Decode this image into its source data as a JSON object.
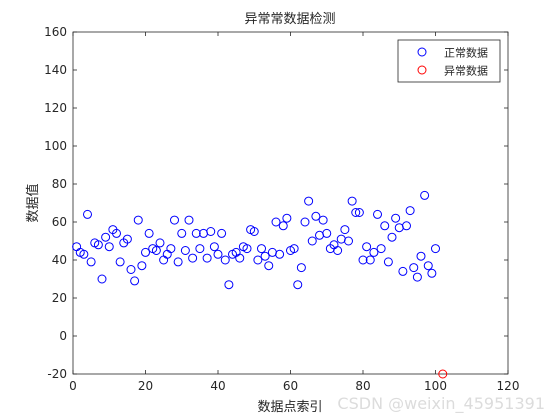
{
  "chart_data": {
    "type": "scatter",
    "title": "异常常数据检测",
    "xlabel": "数据点索引",
    "ylabel": "数据值",
    "xlim": [
      0,
      120
    ],
    "ylim": [
      -20,
      160
    ],
    "xticks": [
      0,
      20,
      40,
      60,
      80,
      100,
      120
    ],
    "yticks": [
      -20,
      0,
      20,
      40,
      60,
      80,
      100,
      120,
      140,
      160
    ],
    "grid": false,
    "legend_position": "top-right",
    "series": [
      {
        "name": "正常数据",
        "color": "#0000ff",
        "marker": "circle",
        "points": [
          [
            1,
            47
          ],
          [
            2,
            44
          ],
          [
            3,
            43
          ],
          [
            4,
            64
          ],
          [
            5,
            39
          ],
          [
            6,
            49
          ],
          [
            7,
            48
          ],
          [
            8,
            30
          ],
          [
            9,
            52
          ],
          [
            10,
            47
          ],
          [
            11,
            56
          ],
          [
            12,
            54
          ],
          [
            13,
            39
          ],
          [
            14,
            49
          ],
          [
            15,
            51
          ],
          [
            16,
            35
          ],
          [
            17,
            29
          ],
          [
            18,
            61
          ],
          [
            19,
            37
          ],
          [
            20,
            44
          ],
          [
            21,
            54
          ],
          [
            22,
            46
          ],
          [
            23,
            45
          ],
          [
            24,
            49
          ],
          [
            25,
            40
          ],
          [
            26,
            43
          ],
          [
            27,
            46
          ],
          [
            28,
            61
          ],
          [
            29,
            39
          ],
          [
            30,
            54
          ],
          [
            31,
            45
          ],
          [
            32,
            61
          ],
          [
            33,
            41
          ],
          [
            34,
            54
          ],
          [
            35,
            46
          ],
          [
            36,
            54
          ],
          [
            37,
            41
          ],
          [
            38,
            55
          ],
          [
            39,
            47
          ],
          [
            40,
            43
          ],
          [
            41,
            54
          ],
          [
            42,
            40
          ],
          [
            43,
            27
          ],
          [
            44,
            43
          ],
          [
            45,
            44
          ],
          [
            46,
            41
          ],
          [
            47,
            47
          ],
          [
            48,
            46
          ],
          [
            49,
            56
          ],
          [
            50,
            55
          ],
          [
            51,
            40
          ],
          [
            52,
            46
          ],
          [
            53,
            42
          ],
          [
            54,
            37
          ],
          [
            55,
            44
          ],
          [
            56,
            60
          ],
          [
            57,
            43
          ],
          [
            58,
            58
          ],
          [
            59,
            62
          ],
          [
            60,
            45
          ],
          [
            61,
            46
          ],
          [
            62,
            27
          ],
          [
            63,
            36
          ],
          [
            64,
            60
          ],
          [
            65,
            71
          ],
          [
            66,
            50
          ],
          [
            67,
            63
          ],
          [
            68,
            53
          ],
          [
            69,
            61
          ],
          [
            70,
            54
          ],
          [
            71,
            46
          ],
          [
            72,
            48
          ],
          [
            73,
            45
          ],
          [
            74,
            51
          ],
          [
            75,
            56
          ],
          [
            76,
            50
          ],
          [
            77,
            71
          ],
          [
            78,
            65
          ],
          [
            79,
            65
          ],
          [
            80,
            40
          ],
          [
            81,
            47
          ],
          [
            82,
            40
          ],
          [
            83,
            44
          ],
          [
            84,
            64
          ],
          [
            85,
            46
          ],
          [
            86,
            58
          ],
          [
            87,
            39
          ],
          [
            88,
            52
          ],
          [
            89,
            62
          ],
          [
            90,
            57
          ],
          [
            91,
            34
          ],
          [
            92,
            58
          ],
          [
            93,
            66
          ],
          [
            94,
            36
          ],
          [
            95,
            31
          ],
          [
            96,
            42
          ],
          [
            97,
            74
          ],
          [
            98,
            37
          ],
          [
            99,
            33
          ],
          [
            100,
            46
          ]
        ]
      },
      {
        "name": "异常数据",
        "color": "#ff0000",
        "marker": "circle",
        "points": [
          [
            102,
            -20
          ]
        ]
      }
    ]
  },
  "watermark": "CSDN @weixin_45951391"
}
